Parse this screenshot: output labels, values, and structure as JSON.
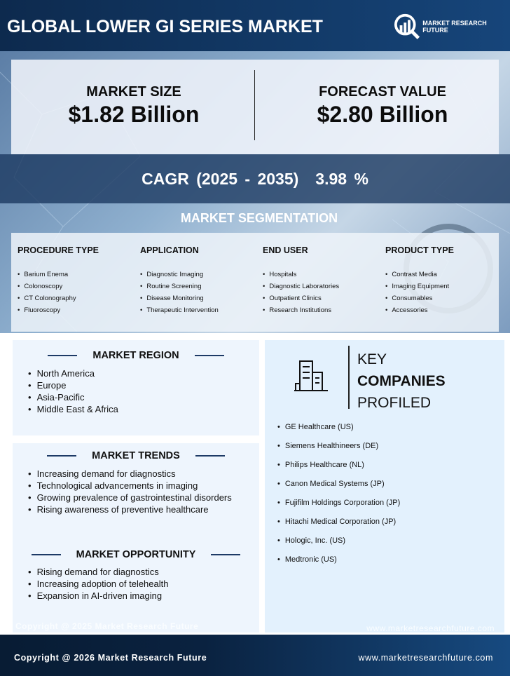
{
  "header": {
    "title": "GLOBAL LOWER GI SERIES MARKET",
    "logo_text": "MARKET RESEARCH FUTURE",
    "logo_reg": "®"
  },
  "market_size": {
    "label": "MARKET SIZE",
    "value": "$1.82 Billion"
  },
  "forecast": {
    "label": "FORECAST VALUE",
    "value": "$2.80 Billion"
  },
  "cagr": {
    "label": "CAGR (2025 - 2035)",
    "value": "3.98 %"
  },
  "segmentation": {
    "title": "MARKET SEGMENTATION",
    "columns": [
      {
        "heading": "PROCEDURE TYPE",
        "items": [
          "Barium Enema",
          "Colonoscopy",
          "CT Colonography",
          "Fluoroscopy"
        ]
      },
      {
        "heading": "APPLICATION",
        "items": [
          "Diagnostic Imaging",
          "Routine Screening",
          "Disease Monitoring",
          "Therapeutic Intervention"
        ]
      },
      {
        "heading": "END USER",
        "items": [
          "Hospitals",
          "Diagnostic Laboratories",
          "Outpatient Clinics",
          "Research Institutions"
        ]
      },
      {
        "heading": "PRODUCT TYPE",
        "items": [
          "Contrast Media",
          "Imaging Equipment",
          "Consumables",
          "Accessories"
        ]
      }
    ]
  },
  "region": {
    "title": "MARKET REGION",
    "items": [
      "North America",
      "Europe",
      "Asia-Pacific",
      "Middle East & Africa"
    ]
  },
  "trends": {
    "title": "MARKET TRENDS",
    "items": [
      "Increasing demand for diagnostics",
      "Technological advancements in imaging",
      "Growing prevalence of gastrointestinal disorders",
      "Rising awareness of preventive healthcare"
    ]
  },
  "opportunity": {
    "title": "MARKET OPPORTUNITY",
    "items": [
      "Rising demand for diagnostics",
      "Increasing adoption of telehealth",
      "Expansion in AI-driven imaging"
    ]
  },
  "companies": {
    "title_1": "KEY",
    "title_2": "COMPANIES",
    "title_3": "PROFILED",
    "icon": "building-icon",
    "items": [
      "GE Healthcare (US)",
      "Siemens Healthineers (DE)",
      "Philips Healthcare (NL)",
      "Canon Medical Systems (JP)",
      "Fujifilm Holdings Corporation (JP)",
      "Hitachi Medical Corporation (JP)",
      "Hologic, Inc. (US)",
      "Medtronic (US)"
    ]
  },
  "ghost": {
    "copyright": "Copyright @ 2025 Market Research Future",
    "website": "www.marketresearchfuture.com"
  },
  "footer": {
    "copyright": "Copyright @ 2026 Market Research Future",
    "website": "www.marketresearchfuture.com"
  }
}
